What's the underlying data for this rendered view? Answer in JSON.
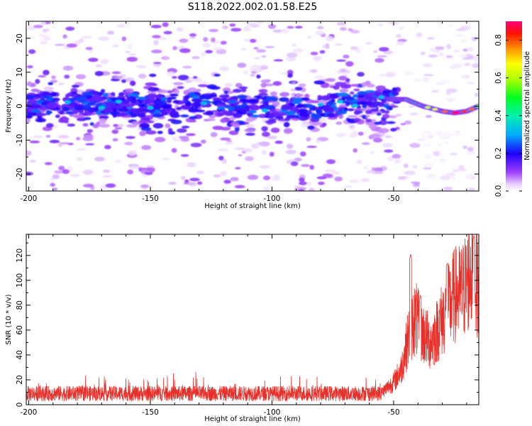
{
  "title": "S118.2022.002.01.58.E25",
  "colors": {
    "snr_line": "#e8302a",
    "background": "#ffffff",
    "axis": "#000000"
  },
  "chart_data": [
    {
      "type": "heatmap",
      "name": "spectrogram",
      "xlabel": "Height of straight line (km)",
      "ylabel": "Frequency (Hz)",
      "xlim": [
        -201,
        -15
      ],
      "ylim": [
        -25,
        25
      ],
      "x_ticks": [
        -200,
        -150,
        -100,
        -50
      ],
      "y_ticks": [
        -20,
        -10,
        0,
        10,
        20
      ],
      "signal_ridge": [
        {
          "x": -200,
          "f": 0
        },
        {
          "x": -185,
          "f": 1
        },
        {
          "x": -170,
          "f": 0.5
        },
        {
          "x": -150,
          "f": 0
        },
        {
          "x": -130,
          "f": 1
        },
        {
          "x": -110,
          "f": 0
        },
        {
          "x": -90,
          "f": -1
        },
        {
          "x": -70,
          "f": 0.5
        },
        {
          "x": -55,
          "f": 2
        },
        {
          "x": -45,
          "f": 2
        },
        {
          "x": -38,
          "f": 0
        },
        {
          "x": -30,
          "f": -1.5
        },
        {
          "x": -25,
          "f": -2
        },
        {
          "x": -20,
          "f": -1.5
        },
        {
          "x": -15,
          "f": 0
        }
      ],
      "colorbar": {
        "label": "Normalized spectral amplitude",
        "range": [
          0,
          0.9
        ],
        "ticks": [
          "0.0",
          "0.2",
          "0.4",
          "0.6",
          "0.8"
        ],
        "tick_values": [
          0,
          0.2,
          0.4,
          0.6,
          0.8
        ]
      }
    },
    {
      "type": "line",
      "name": "snr",
      "xlabel": "Height of straight line (km)",
      "ylabel": "SNR (10 * v/v)",
      "xlim": [
        -201,
        -15
      ],
      "ylim": [
        0,
        137
      ],
      "x_ticks": [
        -200,
        -150,
        -100,
        -50
      ],
      "y_ticks": [
        0,
        20,
        40,
        60,
        80,
        100,
        120
      ],
      "baseline_segment": {
        "x_range": [
          -201,
          -55
        ],
        "typical": 9,
        "spread": [
          0,
          28
        ]
      },
      "envelope": [
        {
          "x": -55,
          "y": 10
        },
        {
          "x": -50,
          "y": 18
        },
        {
          "x": -47,
          "y": 28
        },
        {
          "x": -45,
          "y": 45
        },
        {
          "x": -43,
          "y": 62
        },
        {
          "x": -41,
          "y": 70
        },
        {
          "x": -39,
          "y": 60
        },
        {
          "x": -37,
          "y": 55
        },
        {
          "x": -35,
          "y": 50
        },
        {
          "x": -33,
          "y": 56
        },
        {
          "x": -31,
          "y": 65
        },
        {
          "x": -29,
          "y": 72
        },
        {
          "x": -27,
          "y": 80
        },
        {
          "x": -25,
          "y": 88
        },
        {
          "x": -22,
          "y": 90
        },
        {
          "x": -20,
          "y": 98
        },
        {
          "x": -18,
          "y": 110
        },
        {
          "x": -16,
          "y": 100
        },
        {
          "x": -15,
          "y": 95
        }
      ],
      "peaks": [
        {
          "x": -43,
          "y": 121
        },
        {
          "x": -39,
          "y": 88
        },
        {
          "x": -28,
          "y": 114
        },
        {
          "x": -17,
          "y": 136
        }
      ]
    }
  ]
}
